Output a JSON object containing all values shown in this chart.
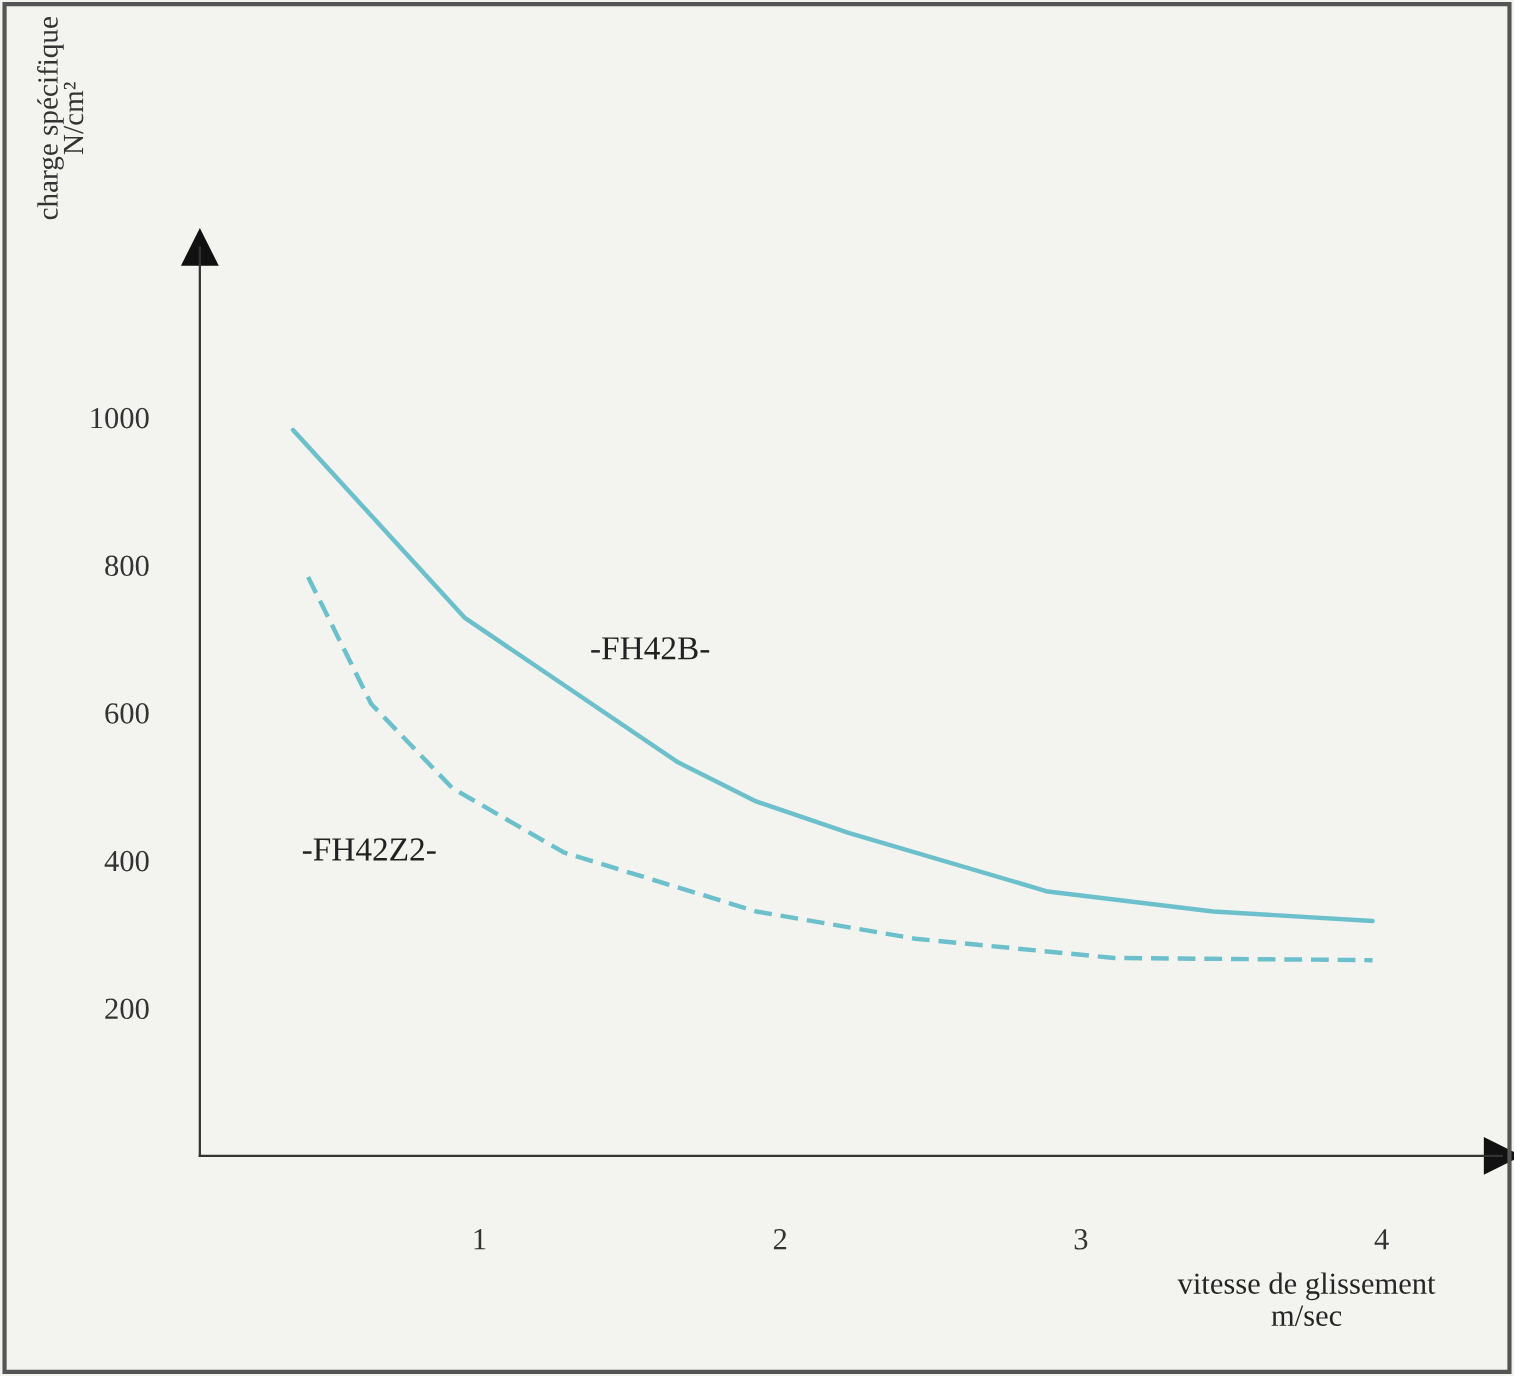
{
  "chart_data": {
    "type": "line",
    "xlabel": "vitesse de glissement\nm/sec",
    "ylabel": "charge spécifique\nN/cm²",
    "xlim": [
      0.07,
      4.4
    ],
    "ylim": [
      0,
      1230
    ],
    "xticks": [
      1,
      2,
      3,
      4
    ],
    "yticks": [
      200,
      400,
      600,
      800,
      1000
    ],
    "grid": false,
    "marker": "none",
    "series": [
      {
        "name": "-FH42B-",
        "color": "#6cc0cc",
        "line_style": "solid",
        "x": [
          0.38,
          0.95,
          1.66,
          1.92,
          2.23,
          2.89,
          3.44,
          3.97
        ],
        "values": [
          983,
          729,
          533,
          480,
          437,
          358,
          331,
          318
        ]
      },
      {
        "name": "-FH42Z2-",
        "color": "#6cc0cc",
        "line_style": "dashed",
        "x": [
          0.43,
          0.64,
          0.91,
          1.28,
          1.92,
          2.45,
          3.11,
          3.97
        ],
        "values": [
          784,
          612,
          498,
          411,
          331,
          294,
          268,
          265
        ]
      }
    ]
  }
}
